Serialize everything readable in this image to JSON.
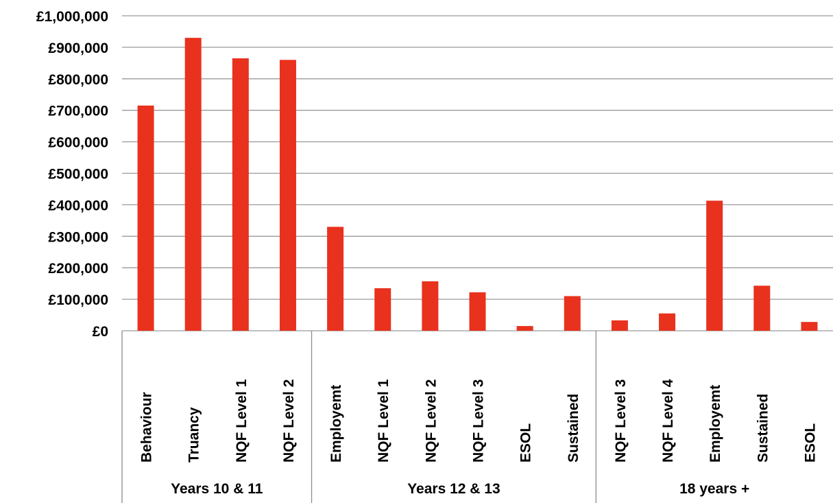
{
  "chart_data": {
    "type": "bar",
    "title": "",
    "xlabel": "",
    "ylabel": "",
    "ylim": [
      0,
      1000000
    ],
    "yticks": [
      {
        "value": 0,
        "label": "£0"
      },
      {
        "value": 100000,
        "label": "£100,000"
      },
      {
        "value": 200000,
        "label": "£200,000"
      },
      {
        "value": 300000,
        "label": "£300,000"
      },
      {
        "value": 400000,
        "label": "£400,000"
      },
      {
        "value": 500000,
        "label": "£500,000"
      },
      {
        "value": 600000,
        "label": "£600,000"
      },
      {
        "value": 700000,
        "label": "£700,000"
      },
      {
        "value": 800000,
        "label": "£800,000"
      },
      {
        "value": 900000,
        "label": "£900,000"
      },
      {
        "value": 1000000,
        "label": "£1,000,000"
      }
    ],
    "grid": true,
    "bar_color": "#e8321e",
    "groups": [
      {
        "label": "Years 10 & 11",
        "categories": [
          "Behaviour",
          "Truancy",
          "NQF Level 1",
          "NQF Level 2"
        ]
      },
      {
        "label": "Years 12 & 13",
        "categories": [
          "Employemt",
          "NQF Level 1",
          "NQF Level 2",
          "NQF Level 3",
          "ESOL",
          "Sustained"
        ]
      },
      {
        "label": "18 years +",
        "categories": [
          "NQF Level 3",
          "NQF Level 4",
          "Employemt",
          "Sustained",
          "ESOL"
        ]
      }
    ],
    "categories": [
      "Behaviour",
      "Truancy",
      "NQF Level 1",
      "NQF Level 2",
      "Employemt",
      "NQF Level 1",
      "NQF Level 2",
      "NQF Level 3",
      "ESOL",
      "Sustained",
      "NQF Level 3",
      "NQF Level 4",
      "Employemt",
      "Sustained",
      "ESOL"
    ],
    "values": [
      715000,
      930000,
      865000,
      860000,
      330000,
      135000,
      157000,
      122000,
      15000,
      110000,
      33000,
      55000,
      413000,
      143000,
      28000
    ]
  }
}
